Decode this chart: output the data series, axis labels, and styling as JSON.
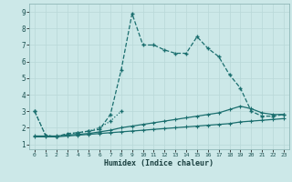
{
  "xlabel": "Humidex (Indice chaleur)",
  "background_color": "#cce8e8",
  "grid_color": "#b8d8d8",
  "line_color": "#1a6e6e",
  "xlim": [
    -0.5,
    23.5
  ],
  "ylim": [
    0.7,
    9.5
  ],
  "yticks": [
    1,
    2,
    3,
    4,
    5,
    6,
    7,
    8,
    9
  ],
  "xticks": [
    0,
    1,
    2,
    3,
    4,
    5,
    6,
    7,
    8,
    9,
    10,
    11,
    12,
    13,
    14,
    15,
    16,
    17,
    18,
    19,
    20,
    21,
    22,
    23
  ],
  "line1_x": [
    0,
    1,
    2,
    3,
    4,
    5,
    6,
    7,
    8,
    9,
    10,
    11,
    12,
    13,
    14,
    15,
    16,
    17,
    18,
    19,
    20,
    21,
    22,
    23
  ],
  "line1_y": [
    3.0,
    1.55,
    1.45,
    1.65,
    1.7,
    1.8,
    1.9,
    2.8,
    5.5,
    8.9,
    7.0,
    7.0,
    6.7,
    6.5,
    6.5,
    7.5,
    6.8,
    6.3,
    5.2,
    4.4,
    3.0,
    2.7,
    2.7,
    2.8
  ],
  "line2_x": [
    0,
    1,
    2,
    3,
    4,
    5,
    6,
    7,
    8
  ],
  "line2_y": [
    3.0,
    1.55,
    1.45,
    1.6,
    1.7,
    1.8,
    2.0,
    2.4,
    3.0
  ],
  "line3_x": [
    0,
    1,
    2,
    3,
    4,
    5,
    6,
    7,
    8,
    9,
    10,
    11,
    12,
    13,
    14,
    15,
    16,
    17,
    18,
    19,
    20,
    21,
    22,
    23
  ],
  "line3_y": [
    1.45,
    1.45,
    1.45,
    1.5,
    1.55,
    1.6,
    1.65,
    1.7,
    1.75,
    1.8,
    1.85,
    1.9,
    1.95,
    2.0,
    2.05,
    2.1,
    2.15,
    2.2,
    2.25,
    2.35,
    2.4,
    2.45,
    2.5,
    2.55
  ],
  "line4_x": [
    0,
    1,
    2,
    3,
    4,
    5,
    6,
    7,
    8,
    9,
    10,
    11,
    12,
    13,
    14,
    15,
    16,
    17,
    18,
    19,
    20,
    21,
    22,
    23
  ],
  "line4_y": [
    1.5,
    1.5,
    1.5,
    1.55,
    1.6,
    1.65,
    1.75,
    1.85,
    2.0,
    2.1,
    2.2,
    2.3,
    2.4,
    2.5,
    2.6,
    2.7,
    2.8,
    2.9,
    3.1,
    3.3,
    3.15,
    2.9,
    2.8,
    2.8
  ]
}
